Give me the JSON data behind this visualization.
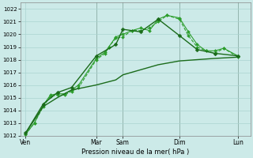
{
  "xlabel": "Pression niveau de la mer( hPa )",
  "bg_color": "#cceae8",
  "grid_color": "#aad4d0",
  "ylim": [
    1012,
    1022.5
  ],
  "yticks": [
    1012,
    1013,
    1014,
    1015,
    1016,
    1017,
    1018,
    1019,
    1020,
    1021,
    1022
  ],
  "xlim": [
    0,
    13
  ],
  "day_labels": [
    "Ven",
    "Mar",
    "Sam",
    "Dim",
    "Lun"
  ],
  "day_positions": [
    0.3,
    4.3,
    5.8,
    9.0,
    12.3
  ],
  "vline_positions": [
    4.3,
    5.8,
    9.0,
    12.3
  ],
  "series": [
    {
      "x": [
        0.3,
        0.8,
        1.3,
        1.7,
        2.1,
        2.5,
        2.9,
        3.3,
        4.3,
        4.8,
        5.0,
        5.4,
        5.8,
        6.3,
        6.8,
        7.3,
        7.8,
        8.3,
        9.0,
        9.5,
        10.0,
        10.5,
        11.0,
        11.5,
        12.3
      ],
      "y": [
        1012.1,
        1013.0,
        1014.3,
        1015.1,
        1015.2,
        1015.2,
        1015.5,
        1015.8,
        1018.0,
        1018.5,
        1019.0,
        1019.7,
        1019.8,
        1020.3,
        1020.3,
        1020.5,
        1021.0,
        1021.5,
        1021.2,
        1019.9,
        1019.0,
        1018.7,
        1018.5,
        1018.9,
        1018.2
      ],
      "style": "dashed",
      "marker": "D",
      "markersize": 2.0,
      "lw": 0.8,
      "color": "#2d9e2d"
    },
    {
      "x": [
        0.3,
        0.8,
        1.3,
        1.7,
        2.1,
        2.5,
        2.9,
        3.3,
        4.3,
        4.8,
        5.0,
        5.4,
        5.8,
        6.3,
        6.8,
        7.3,
        7.8,
        8.3,
        9.0,
        9.5,
        10.0,
        10.5,
        11.0,
        11.5,
        12.3
      ],
      "y": [
        1012.1,
        1013.0,
        1014.4,
        1015.2,
        1015.3,
        1015.3,
        1015.6,
        1016.0,
        1018.1,
        1018.6,
        1019.0,
        1019.8,
        1020.0,
        1020.3,
        1020.5,
        1020.3,
        1021.2,
        1021.5,
        1021.3,
        1020.2,
        1019.2,
        1018.7,
        1018.7,
        1018.9,
        1018.3
      ],
      "style": "solid",
      "marker": "D",
      "markersize": 2.0,
      "lw": 0.8,
      "color": "#2d9e2d"
    },
    {
      "x": [
        0.3,
        1.3,
        2.1,
        2.9,
        4.3,
        5.4,
        5.8,
        6.8,
        7.8,
        9.0,
        10.0,
        11.0,
        12.3
      ],
      "y": [
        1012.2,
        1014.5,
        1015.4,
        1015.8,
        1018.3,
        1019.2,
        1020.4,
        1020.2,
        1021.2,
        1019.9,
        1018.8,
        1018.5,
        1018.3
      ],
      "style": "solid",
      "marker": "D",
      "markersize": 2.5,
      "lw": 1.0,
      "color": "#1a6b1a"
    },
    {
      "x": [
        0.3,
        1.3,
        2.1,
        2.9,
        4.3,
        5.4,
        5.8,
        6.8,
        7.8,
        9.0,
        10.0,
        11.0,
        12.3
      ],
      "y": [
        1012.2,
        1014.3,
        1015.0,
        1015.6,
        1016.0,
        1016.4,
        1016.8,
        1017.2,
        1017.6,
        1017.9,
        1018.0,
        1018.1,
        1018.2
      ],
      "style": "solid",
      "marker": null,
      "markersize": 0,
      "lw": 1.0,
      "color": "#1a6b1a"
    }
  ]
}
